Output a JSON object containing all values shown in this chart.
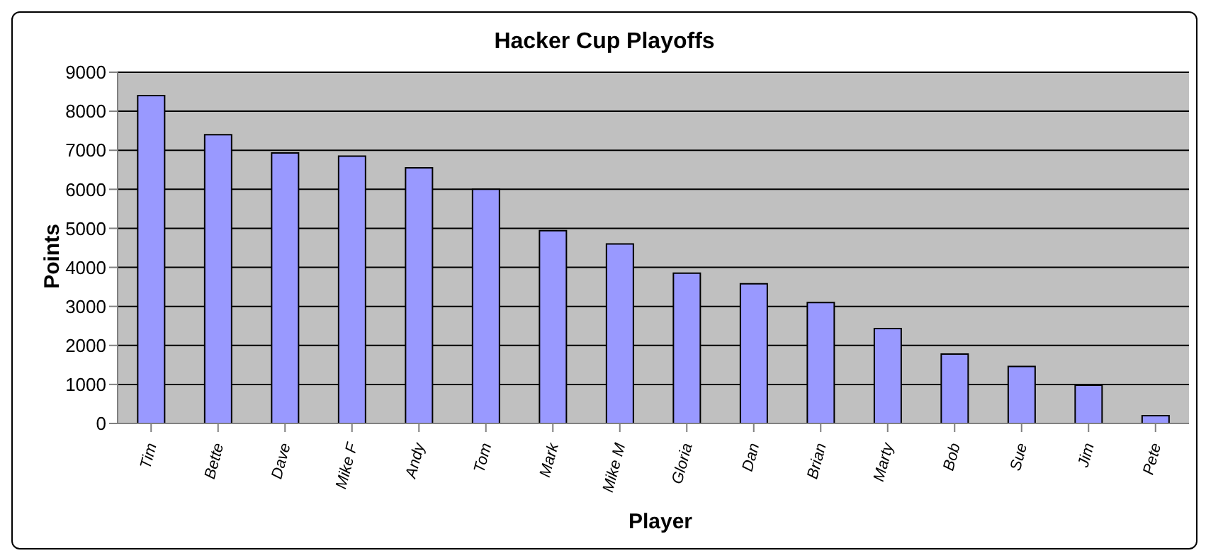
{
  "chart_data": {
    "type": "bar",
    "title": "Hacker Cup Playoffs",
    "xlabel": "Player",
    "ylabel": "Points",
    "categories": [
      "Tim",
      "Bette",
      "Dave",
      "Mike F",
      "Andy",
      "Tom",
      "Mark",
      "Mike M",
      "Gloria",
      "Dan",
      "Brian",
      "Marty",
      "Bob",
      "Sue",
      "Jim",
      "Pete"
    ],
    "values": [
      8400,
      7400,
      6930,
      6850,
      6550,
      6000,
      4940,
      4600,
      3850,
      3580,
      3100,
      2430,
      1780,
      1460,
      980,
      200
    ],
    "color": "#9999ff",
    "ylim": [
      0,
      9000
    ],
    "yticks": [
      0,
      1000,
      2000,
      3000,
      4000,
      5000,
      6000,
      7000,
      8000,
      9000
    ],
    "grid": "y",
    "legend": false
  }
}
